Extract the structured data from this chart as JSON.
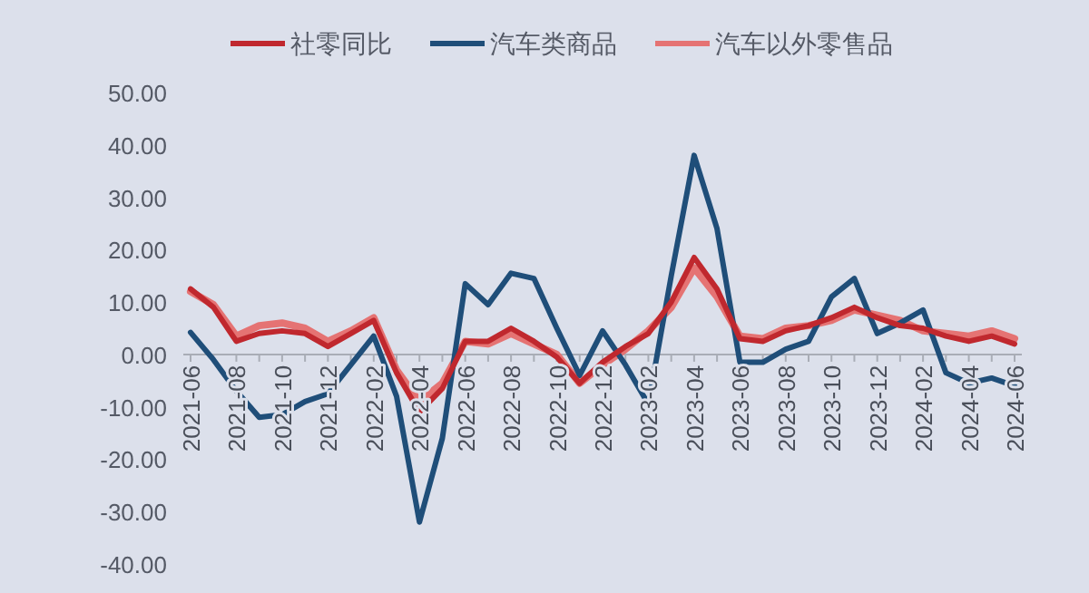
{
  "chart_data": {
    "type": "line",
    "categories": [
      "2021-06",
      null,
      "2021-08",
      null,
      "2021-10",
      null,
      "2021-12",
      null,
      "2022-02",
      null,
      "2022-04",
      null,
      "2022-06",
      null,
      "2022-08",
      null,
      "2022-10",
      null,
      "2022-12",
      null,
      "2023-02",
      null,
      "2023-04",
      null,
      "2023-06",
      null,
      "2023-08",
      null,
      "2023-10",
      null,
      "2023-12",
      null,
      "2024-02",
      null,
      "2024-04",
      null,
      "2024-06"
    ],
    "series": [
      {
        "name": "社零同比",
        "color": "#c0282e",
        "values": [
          12.5,
          9,
          2.5,
          4,
          4.5,
          4,
          1.5,
          4,
          6.5,
          -3.5,
          -11,
          -6.5,
          2.5,
          2.5,
          5,
          2.5,
          -0.5,
          -5.5,
          -1.5,
          1.5,
          4,
          10,
          18.5,
          12.5,
          3,
          2.5,
          4.5,
          5.5,
          7,
          9,
          7,
          5.5,
          5,
          3.5,
          2.5,
          3.5,
          2
        ]
      },
      {
        "name": "汽车类商品",
        "color": "#1f4e79",
        "values": [
          4.2,
          -1,
          -7,
          -12,
          -11.5,
          -9,
          -7.5,
          -2,
          3.5,
          -8,
          -32,
          -16,
          13.5,
          9.5,
          15.5,
          14.5,
          5,
          -4,
          4.5,
          -2,
          -9.5,
          15,
          38,
          24,
          -1.5,
          -1.5,
          1,
          2.5,
          11,
          14.5,
          4,
          6,
          8.5,
          -3.5,
          -5.5,
          -4.5,
          -6
        ]
      },
      {
        "name": "汽车以外零售品",
        "color": "#e57373",
        "values": [
          12,
          9.5,
          3.5,
          5.5,
          6,
          5,
          2.5,
          4.5,
          7,
          -3,
          -9,
          -5.5,
          2.5,
          2,
          4,
          2,
          0,
          -5.5,
          -2,
          1,
          4.5,
          9,
          16.5,
          11,
          3.5,
          3,
          5,
          5.5,
          6.5,
          8.5,
          7.5,
          6.5,
          4.5,
          4,
          3.5,
          4.5,
          3
        ]
      }
    ],
    "ylim": [
      -40,
      50
    ],
    "yticks": [
      {
        "value": -40,
        "label": "-40.00"
      },
      {
        "value": -30,
        "label": "-30.00"
      },
      {
        "value": -20,
        "label": "-20.00"
      },
      {
        "value": -10,
        "label": "-10.00"
      },
      {
        "value": 0,
        "label": "0.00"
      },
      {
        "value": 10,
        "label": "10.00"
      },
      {
        "value": 20,
        "label": "20.00"
      },
      {
        "value": 30,
        "label": "30.00"
      },
      {
        "value": 40,
        "label": "40.00"
      },
      {
        "value": 50,
        "label": "50.00"
      }
    ],
    "grid": false,
    "legend": "top",
    "line_style": "solid",
    "marker": "none"
  }
}
